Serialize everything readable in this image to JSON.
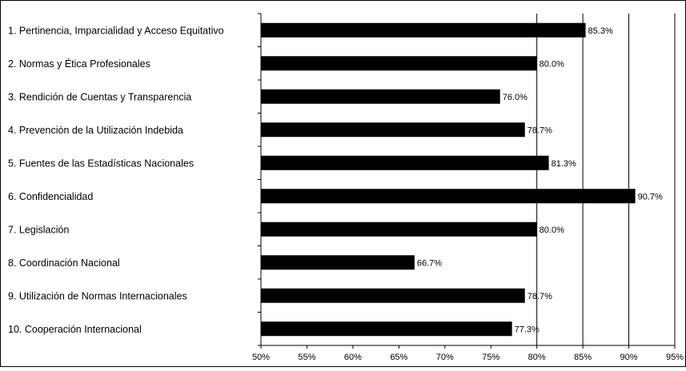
{
  "chart_data": {
    "type": "bar",
    "orientation": "horizontal",
    "categories": [
      "1. Pertinencia, Imparcialidad y Acceso Equitativo",
      "2. Normas y Ética Profesionales",
      "3. Rendición de Cuentas y Transparencia",
      "4. Prevención de la Utilización Indebida",
      "5. Fuentes de las Estadísticas Nacionales",
      "6. Confidencialidad",
      "7. Legislación",
      "8. Coordinación Nacional",
      "9. Utilización de Normas Internacionales",
      "10. Cooperación Internacional"
    ],
    "values": [
      85.3,
      80.0,
      76.0,
      78.7,
      81.3,
      90.7,
      80.0,
      66.7,
      78.7,
      77.3
    ],
    "value_labels": [
      "85.3%",
      "80.0%",
      "76.0%",
      "78.7%",
      "81.3%",
      "90.7%",
      "80.0%",
      "66.7%",
      "78.7%",
      "77.3%"
    ],
    "xlim": [
      50,
      95
    ],
    "x_ticks": [
      50,
      55,
      60,
      65,
      70,
      75,
      80,
      85,
      90,
      95
    ],
    "x_tick_labels": [
      "50%",
      "55%",
      "60%",
      "65%",
      "70%",
      "75%",
      "80%",
      "85%",
      "90%",
      "95%"
    ],
    "grid": "vertical lines at 80%, 85%, 90%, 95%",
    "bar_color": "#000000",
    "title": "",
    "xlabel": "",
    "ylabel": ""
  }
}
